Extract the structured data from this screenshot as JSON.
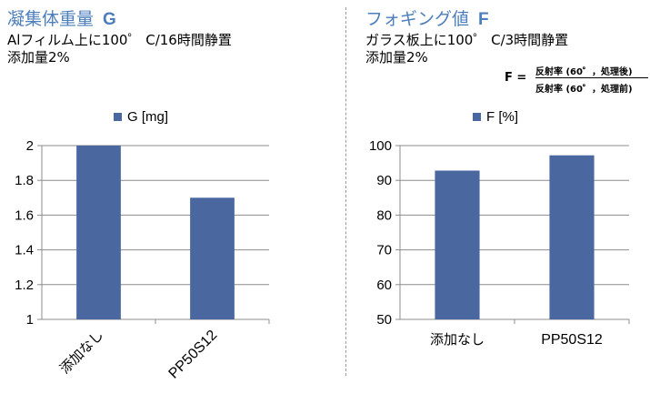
{
  "left_panel": {
    "title": "凝集体重量",
    "symbol": "G",
    "desc_line1": "Alフィルム上に100゜ C/16時間静置",
    "desc_line2": "添加量2%"
  },
  "right_panel": {
    "title": "フォギング値",
    "symbol": "F",
    "desc_line1": "ガラス板上に100゜ C/3時間静置",
    "desc_line2": "添加量2%",
    "formula": {
      "lhs": "F =",
      "numerator": "反射率 (60゜，処理後)",
      "denominator": "反射率 (60゜，処理前)"
    }
  },
  "colors": {
    "bar": "#4a679f",
    "title": "#4c7ebb",
    "grid": "#8c8c8c"
  },
  "chart_data": [
    {
      "type": "bar",
      "categories": [
        "添加なし",
        "PP50S12"
      ],
      "series": [
        {
          "name": "G [mg]",
          "values": [
            2.0,
            1.7
          ]
        }
      ],
      "ylim": [
        1,
        2
      ],
      "yticks": [
        "1",
        "1.2",
        "1.4",
        "1.6",
        "1.8",
        "2"
      ],
      "tick_values": [
        1,
        1.2,
        1.4,
        1.6,
        1.8,
        2
      ],
      "legend": "top",
      "grid": true,
      "category_labels_rotated": true
    },
    {
      "type": "bar",
      "categories": [
        "添加なし",
        "PP50S12"
      ],
      "series": [
        {
          "name": "F [%]",
          "values": [
            92.8,
            97.2
          ]
        }
      ],
      "ylim": [
        50,
        100
      ],
      "yticks": [
        "50",
        "60",
        "70",
        "80",
        "90",
        "100"
      ],
      "tick_values": [
        50,
        60,
        70,
        80,
        90,
        100
      ],
      "legend": "top",
      "grid": true,
      "category_labels_rotated": false
    }
  ]
}
